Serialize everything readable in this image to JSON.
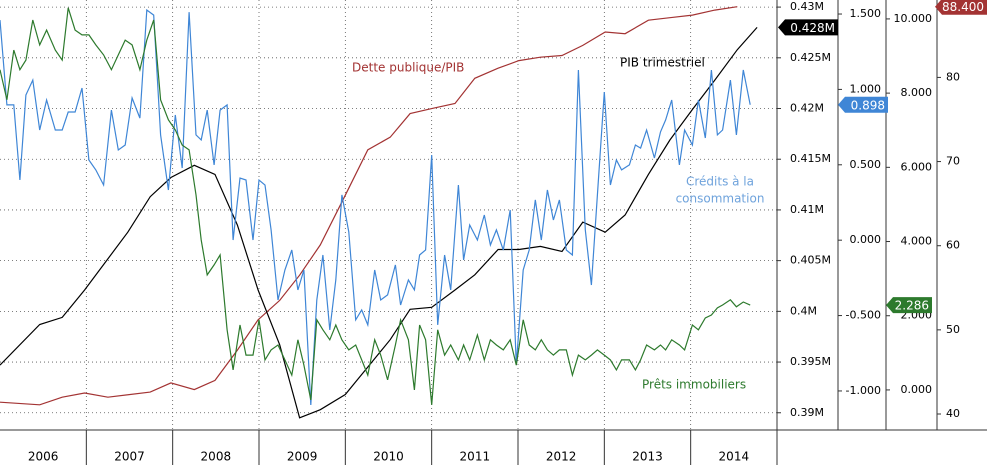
{
  "chart_data": {
    "type": "line",
    "x": [
      2006,
      2006.08,
      2006.16,
      2006.23,
      2006.3,
      2006.38,
      2006.46,
      2006.54,
      2006.64,
      2006.72,
      2006.79,
      2006.87,
      2006.95,
      2007.03,
      2007.11,
      2007.2,
      2007.29,
      2007.37,
      2007.45,
      2007.53,
      2007.62,
      2007.7,
      2007.78,
      2007.86,
      2007.95,
      2008.03,
      2008.11,
      2008.19,
      2008.27,
      2008.33,
      2008.4,
      2008.48,
      2008.55,
      2008.63,
      2008.7,
      2008.78,
      2008.85,
      2008.93,
      2009,
      2009.07,
      2009.14,
      2009.22,
      2009.3,
      2009.38,
      2009.45,
      2009.52,
      2009.6,
      2009.67,
      2009.74,
      2009.82,
      2009.89,
      2009.96,
      2010.04,
      2010.12,
      2010.19,
      2010.26,
      2010.34,
      2010.41,
      2010.49,
      2010.58,
      2010.64,
      2010.73,
      2010.8,
      2010.86,
      2010.93,
      2011,
      2011.07,
      2011.15,
      2011.22,
      2011.31,
      2011.37,
      2011.44,
      2011.53,
      2011.61,
      2011.68,
      2011.75,
      2011.83,
      2011.91,
      2011.98,
      2012.06,
      2012.13,
      2012.2,
      2012.27,
      2012.34,
      2012.41,
      2012.48,
      2012.56,
      2012.63,
      2012.7,
      2012.78,
      2012.85,
      2012.92,
      2013,
      2013.07,
      2013.14,
      2013.2,
      2013.29,
      2013.36,
      2013.42,
      2013.49,
      2013.58,
      2013.65,
      2013.71,
      2013.78,
      2013.87,
      2013.93,
      2014.02,
      2014.09,
      2014.17,
      2014.24,
      2014.31,
      2014.37,
      2014.46,
      2014.53,
      2014.61,
      2014.69
    ],
    "xlim": [
      2006,
      2015
    ],
    "xticks": [
      {
        "value": 2006.5,
        "label": "2006"
      },
      {
        "value": 2007.5,
        "label": "2007"
      },
      {
        "value": 2008.5,
        "label": "2008"
      },
      {
        "value": 2009.5,
        "label": "2009"
      },
      {
        "value": 2010.5,
        "label": "2010"
      },
      {
        "value": 2011.5,
        "label": "2011"
      },
      {
        "value": 2012.5,
        "label": "2012"
      },
      {
        "value": 2013.5,
        "label": "2013"
      },
      {
        "value": 2014.5,
        "label": "2014"
      }
    ],
    "ylim": [
      0.3883,
      0.4307
    ],
    "yticks": [
      {
        "value": 0.39,
        "label": "0.39M"
      },
      {
        "value": 0.395,
        "label": "0.395M"
      },
      {
        "value": 0.4,
        "label": "0.4M"
      },
      {
        "value": 0.405,
        "label": "0.405M"
      },
      {
        "value": 0.41,
        "label": "0.41M"
      },
      {
        "value": 0.415,
        "label": "0.415M"
      },
      {
        "value": 0.42,
        "label": "0.42M"
      },
      {
        "value": 0.425,
        "label": "0.425M"
      },
      {
        "value": 0.43,
        "label": "0.43M"
      }
    ],
    "y2lim": [
      -1.259,
      1.593
    ],
    "y2ticks": [
      {
        "value": -1,
        "label": "-1.000"
      },
      {
        "value": -0.5,
        "label": "-0.500"
      },
      {
        "value": 0,
        "label": "0.000"
      },
      {
        "value": 0.5,
        "label": "0.500"
      },
      {
        "value": 1,
        "label": "1.000"
      },
      {
        "value": 1.5,
        "label": "1.500"
      }
    ],
    "y3lim": [
      -1.08,
      10.51
    ],
    "y3ticks": [
      {
        "value": 0,
        "label": "0.000"
      },
      {
        "value": 2,
        "label": "2.000"
      },
      {
        "value": 4,
        "label": "4.000"
      },
      {
        "value": 6,
        "label": "6.000"
      },
      {
        "value": 8,
        "label": "8.000"
      },
      {
        "value": 10,
        "label": "10.000"
      }
    ],
    "y4lim": [
      38.1,
      89.2
    ],
    "y4ticks": [
      40,
      50,
      60,
      70,
      80
    ],
    "grid": true,
    "series": [
      {
        "name": "Dette publique/PIB",
        "color": "#a33333",
        "axis": "y4",
        "last_label": "88.400",
        "x": [
          2006,
          2006.46,
          2006.72,
          2006.98,
          2007.25,
          2007.74,
          2007.98,
          2008.25,
          2008.49,
          2008.75,
          2008.99,
          2009.24,
          2009.47,
          2009.71,
          2010,
          2010.26,
          2010.52,
          2010.75,
          2011,
          2011.27,
          2011.5,
          2011.77,
          2012.01,
          2012.26,
          2012.51,
          2012.75,
          2013.01,
          2013.24,
          2013.51,
          2013.76,
          2014.02,
          2014.28,
          2014.54
        ],
        "values": [
          41.4,
          41.1,
          42.0,
          42.5,
          42.0,
          42.6,
          43.7,
          42.9,
          44.0,
          47.6,
          51.2,
          53.5,
          56.5,
          60.1,
          66.0,
          71.4,
          72.9,
          75.7,
          76.3,
          76.9,
          79.9,
          81.1,
          82.0,
          82.4,
          82.6,
          83.8,
          85.4,
          85.2,
          86.8,
          87.1,
          87.4,
          88.0,
          88.4
        ]
      },
      {
        "name": "PIB trimestriel",
        "color": "#000000",
        "axis": "y",
        "last_label": "0.428M",
        "x": [
          2006,
          2006.46,
          2006.72,
          2006.98,
          2007.48,
          2007.74,
          2007.98,
          2008.25,
          2008.49,
          2008.75,
          2008.99,
          2009.24,
          2009.47,
          2009.71,
          2010,
          2010.23,
          2010.52,
          2010.75,
          2011,
          2011.27,
          2011.5,
          2011.77,
          2012.01,
          2012.26,
          2012.51,
          2012.75,
          2013.01,
          2013.24,
          2013.51,
          2013.76,
          2014.02,
          2014.28,
          2014.54,
          2014.77
        ],
        "values": [
          0.3947,
          0.3987,
          0.3994,
          0.4021,
          0.4078,
          0.4113,
          0.4132,
          0.4144,
          0.4135,
          0.4085,
          0.4021,
          0.3967,
          0.3895,
          0.3903,
          0.3918,
          0.3942,
          0.3972,
          0.4002,
          0.4004,
          0.4021,
          0.4036,
          0.4061,
          0.4061,
          0.4064,
          0.4059,
          0.4088,
          0.4078,
          0.4095,
          0.4135,
          0.4169,
          0.4199,
          0.4228,
          0.4258,
          0.428
        ]
      },
      {
        "name": [
          "Crédits à la",
          "consommation"
        ],
        "color": "#3f86d6",
        "axis": "y2",
        "last_label": "0.898",
        "values": [
          1.46,
          0.897,
          0.897,
          0.399,
          0.963,
          1.062,
          0.731,
          0.93,
          0.731,
          0.731,
          0.85,
          0.85,
          1.009,
          0.532,
          0.466,
          0.366,
          0.863,
          0.598,
          0.631,
          0.943,
          0.81,
          1.527,
          1.493,
          0.698,
          0.333,
          0.83,
          0.479,
          1.513,
          0.698,
          0.665,
          0.863,
          0.499,
          0.863,
          0.897,
          0.001,
          0.412,
          0.399,
          0.001,
          0.399,
          0.366,
          0.068,
          -0.397,
          -0.198,
          -0.065,
          -0.33,
          -0.198,
          -1.093,
          -0.397,
          -0.098,
          -0.595,
          -0.264,
          0.3,
          0.054,
          -0.529,
          -0.463,
          -0.562,
          -0.198,
          -0.397,
          -0.363,
          -0.164,
          -0.43,
          -0.264,
          -0.33,
          -0.098,
          -0.065,
          0.565,
          -0.562,
          -0.098,
          -0.33,
          0.366,
          -0.131,
          0.101,
          0.001,
          0.167,
          -0.032,
          0.068,
          -0.065,
          0.2,
          -0.827,
          -0.198,
          -0.065,
          0.267,
          0.001,
          0.333,
          0.134,
          0.267,
          -0.065,
          -0.098,
          1.129,
          0.068,
          -0.297,
          0.3,
          0.983,
          0.366,
          0.532,
          0.466,
          0.499,
          0.631,
          0.611,
          0.731,
          0.545,
          0.718,
          0.797,
          0.93,
          0.499,
          0.731,
          0.631,
          0.93,
          0.678,
          1.129,
          0.698,
          0.731,
          1.062,
          0.698,
          1.129,
          0.898
        ]
      },
      {
        "name": "Prêts immobiliers",
        "color": "#2d7a2d",
        "axis": "y3",
        "last_label": "2.286",
        "values": [
          8.63,
          7.82,
          9.16,
          8.63,
          8.89,
          9.97,
          9.3,
          9.7,
          9.16,
          8.89,
          10.3,
          9.7,
          9.57,
          9.57,
          9.3,
          9.03,
          8.63,
          9.03,
          9.43,
          9.3,
          8.63,
          9.43,
          9.97,
          7.82,
          7.28,
          7.01,
          6.6,
          6.47,
          5.26,
          4.04,
          3.1,
          3.37,
          3.64,
          1.62,
          0.54,
          1.75,
          0.94,
          0.94,
          1.89,
          0.81,
          1.08,
          1.21,
          0.81,
          0.4,
          1.35,
          0.67,
          -0.27,
          1.89,
          1.62,
          1.35,
          1.75,
          1.35,
          1.08,
          1.21,
          0.81,
          0.4,
          1.35,
          0.94,
          0.27,
          1.21,
          1.89,
          1.35,
          0.0,
          1.75,
          1.35,
          -0.4,
          1.62,
          0.94,
          1.21,
          0.81,
          1.21,
          0.81,
          1.48,
          0.81,
          1.35,
          1.21,
          1.08,
          1.35,
          0.67,
          1.89,
          1.21,
          1.08,
          1.35,
          1.08,
          0.94,
          1.08,
          1.08,
          0.4,
          0.94,
          0.81,
          0.94,
          1.08,
          0.94,
          0.81,
          0.54,
          0.81,
          0.81,
          0.54,
          0.81,
          1.21,
          1.08,
          1.21,
          1.08,
          1.35,
          1.21,
          1.08,
          1.75,
          1.62,
          1.94,
          2.02,
          2.21,
          2.29,
          2.43,
          2.24,
          2.37,
          2.286
        ]
      }
    ]
  }
}
